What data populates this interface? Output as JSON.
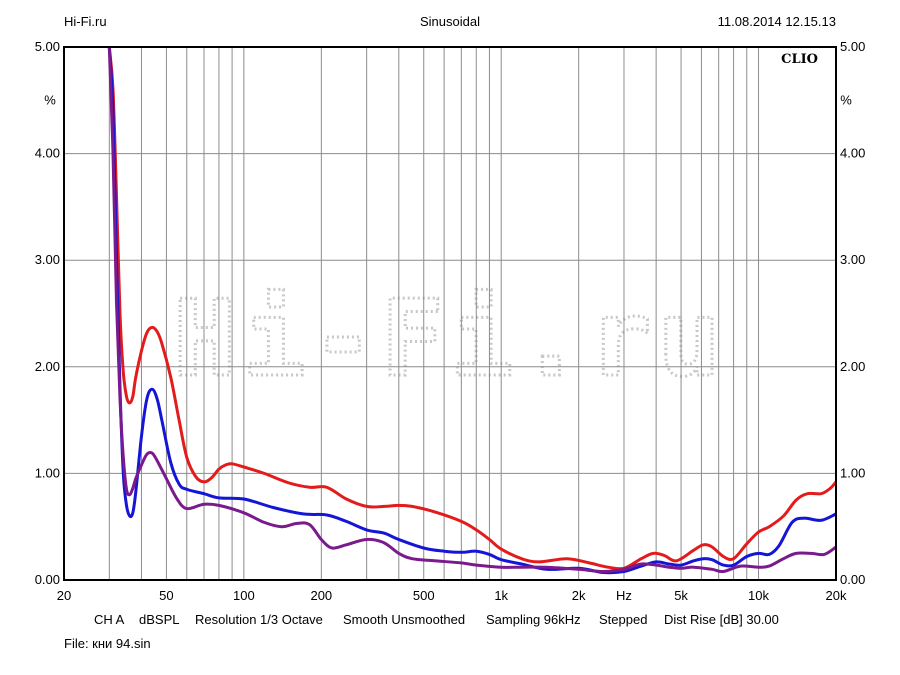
{
  "header": {
    "left": "Hi-Fi.ru",
    "center": "Sinusoidal",
    "right": "11.08.2014 12.15.13"
  },
  "brand": "CLIO",
  "watermark": "Hi-Fi.ru",
  "info": {
    "channel": "CH A",
    "units": "dBSPL",
    "resolution": "Resolution 1/3 Octave",
    "smooth": "Smooth Unsmoothed",
    "sampling": "Sampling 96kHz",
    "mode": "Stepped",
    "dist_rise": "Dist Rise [dB] 30.00"
  },
  "file": "File: кни 94.sin",
  "chart_data": {
    "type": "line",
    "xscale": "log",
    "xlim": [
      20,
      20000
    ],
    "ylim": [
      0,
      5
    ],
    "grid": true,
    "xlabel": "Hz",
    "ylabel": "%",
    "yticks": [
      "0.00",
      "1.00",
      "2.00",
      "3.00",
      "4.00",
      "5.00"
    ],
    "xticks": [
      {
        "value": 20,
        "label": "20"
      },
      {
        "value": 50,
        "label": "50"
      },
      {
        "value": 100,
        "label": "100"
      },
      {
        "value": 200,
        "label": "200"
      },
      {
        "value": 500,
        "label": "500"
      },
      {
        "value": 1000,
        "label": "1k"
      },
      {
        "value": 2000,
        "label": "2k"
      },
      {
        "value": 5000,
        "label": "5k"
      },
      {
        "value": 10000,
        "label": "10k"
      },
      {
        "value": 20000,
        "label": "20k"
      }
    ],
    "series": [
      {
        "color": "#e31b1b",
        "points": [
          [
            30,
            5.0
          ],
          [
            31,
            4.6
          ],
          [
            32,
            3.6
          ],
          [
            33,
            2.5
          ],
          [
            34,
            1.95
          ],
          [
            35,
            1.72
          ],
          [
            36,
            1.66
          ],
          [
            37,
            1.72
          ],
          [
            38,
            1.9
          ],
          [
            40,
            2.15
          ],
          [
            42,
            2.32
          ],
          [
            44,
            2.37
          ],
          [
            46,
            2.33
          ],
          [
            48,
            2.22
          ],
          [
            52,
            1.9
          ],
          [
            56,
            1.5
          ],
          [
            60,
            1.15
          ],
          [
            65,
            0.97
          ],
          [
            70,
            0.92
          ],
          [
            75,
            0.96
          ],
          [
            80,
            1.04
          ],
          [
            85,
            1.08
          ],
          [
            90,
            1.09
          ],
          [
            100,
            1.06
          ],
          [
            120,
            1.0
          ],
          [
            150,
            0.91
          ],
          [
            180,
            0.87
          ],
          [
            210,
            0.87
          ],
          [
            250,
            0.76
          ],
          [
            300,
            0.69
          ],
          [
            350,
            0.69
          ],
          [
            400,
            0.7
          ],
          [
            450,
            0.69
          ],
          [
            550,
            0.64
          ],
          [
            700,
            0.55
          ],
          [
            800,
            0.47
          ],
          [
            900,
            0.38
          ],
          [
            1000,
            0.29
          ],
          [
            1200,
            0.2
          ],
          [
            1400,
            0.17
          ],
          [
            1800,
            0.2
          ],
          [
            2200,
            0.16
          ],
          [
            2600,
            0.12
          ],
          [
            3000,
            0.11
          ],
          [
            3500,
            0.2
          ],
          [
            3900,
            0.25
          ],
          [
            4300,
            0.23
          ],
          [
            4800,
            0.18
          ],
          [
            5600,
            0.28
          ],
          [
            6100,
            0.33
          ],
          [
            6600,
            0.31
          ],
          [
            7300,
            0.22
          ],
          [
            8000,
            0.2
          ],
          [
            9000,
            0.34
          ],
          [
            10000,
            0.45
          ],
          [
            11000,
            0.5
          ],
          [
            12500,
            0.6
          ],
          [
            14000,
            0.75
          ],
          [
            15500,
            0.81
          ],
          [
            17500,
            0.81
          ],
          [
            19000,
            0.86
          ],
          [
            20000,
            0.92
          ]
        ]
      },
      {
        "color": "#1515d6",
        "points": [
          [
            30,
            5.0
          ],
          [
            31,
            4.4
          ],
          [
            32,
            3.0
          ],
          [
            33,
            1.8
          ],
          [
            34,
            1.0
          ],
          [
            35,
            0.7
          ],
          [
            36,
            0.6
          ],
          [
            37,
            0.63
          ],
          [
            38,
            0.82
          ],
          [
            40,
            1.35
          ],
          [
            42,
            1.7
          ],
          [
            44,
            1.79
          ],
          [
            46,
            1.7
          ],
          [
            48,
            1.5
          ],
          [
            52,
            1.1
          ],
          [
            56,
            0.9
          ],
          [
            60,
            0.85
          ],
          [
            70,
            0.81
          ],
          [
            80,
            0.77
          ],
          [
            100,
            0.76
          ],
          [
            130,
            0.68
          ],
          [
            170,
            0.62
          ],
          [
            210,
            0.61
          ],
          [
            250,
            0.55
          ],
          [
            300,
            0.47
          ],
          [
            350,
            0.44
          ],
          [
            400,
            0.38
          ],
          [
            500,
            0.3
          ],
          [
            600,
            0.27
          ],
          [
            700,
            0.26
          ],
          [
            800,
            0.27
          ],
          [
            900,
            0.24
          ],
          [
            1000,
            0.19
          ],
          [
            1200,
            0.15
          ],
          [
            1500,
            0.1
          ],
          [
            2000,
            0.11
          ],
          [
            2500,
            0.07
          ],
          [
            3000,
            0.08
          ],
          [
            3500,
            0.13
          ],
          [
            4000,
            0.17
          ],
          [
            4500,
            0.15
          ],
          [
            5000,
            0.14
          ],
          [
            5600,
            0.18
          ],
          [
            6100,
            0.2
          ],
          [
            6600,
            0.19
          ],
          [
            7300,
            0.14
          ],
          [
            8000,
            0.14
          ],
          [
            9000,
            0.22
          ],
          [
            10000,
            0.25
          ],
          [
            11000,
            0.24
          ],
          [
            12000,
            0.32
          ],
          [
            13500,
            0.54
          ],
          [
            15000,
            0.58
          ],
          [
            17500,
            0.56
          ],
          [
            20000,
            0.62
          ]
        ]
      },
      {
        "color": "#7a1a8c",
        "points": [
          [
            30,
            5.0
          ],
          [
            31,
            4.0
          ],
          [
            32,
            2.6
          ],
          [
            33,
            1.7
          ],
          [
            34,
            1.15
          ],
          [
            35,
            0.85
          ],
          [
            36,
            0.8
          ],
          [
            37,
            0.86
          ],
          [
            38,
            0.95
          ],
          [
            40,
            1.08
          ],
          [
            42,
            1.18
          ],
          [
            44,
            1.19
          ],
          [
            46,
            1.12
          ],
          [
            50,
            0.95
          ],
          [
            55,
            0.76
          ],
          [
            60,
            0.67
          ],
          [
            70,
            0.71
          ],
          [
            80,
            0.7
          ],
          [
            100,
            0.63
          ],
          [
            120,
            0.54
          ],
          [
            140,
            0.5
          ],
          [
            160,
            0.53
          ],
          [
            180,
            0.52
          ],
          [
            200,
            0.38
          ],
          [
            220,
            0.3
          ],
          [
            250,
            0.33
          ],
          [
            300,
            0.38
          ],
          [
            350,
            0.35
          ],
          [
            400,
            0.25
          ],
          [
            450,
            0.2
          ],
          [
            550,
            0.18
          ],
          [
            700,
            0.16
          ],
          [
            800,
            0.14
          ],
          [
            1000,
            0.12
          ],
          [
            1200,
            0.12
          ],
          [
            1500,
            0.12
          ],
          [
            2000,
            0.1
          ],
          [
            2500,
            0.08
          ],
          [
            3000,
            0.1
          ],
          [
            3500,
            0.15
          ],
          [
            4000,
            0.14
          ],
          [
            4500,
            0.12
          ],
          [
            5000,
            0.11
          ],
          [
            5600,
            0.12
          ],
          [
            6600,
            0.1
          ],
          [
            7300,
            0.08
          ],
          [
            8500,
            0.13
          ],
          [
            10000,
            0.12
          ],
          [
            11000,
            0.13
          ],
          [
            12500,
            0.2
          ],
          [
            14000,
            0.25
          ],
          [
            16000,
            0.25
          ],
          [
            18000,
            0.24
          ],
          [
            20000,
            0.31
          ]
        ]
      }
    ]
  }
}
